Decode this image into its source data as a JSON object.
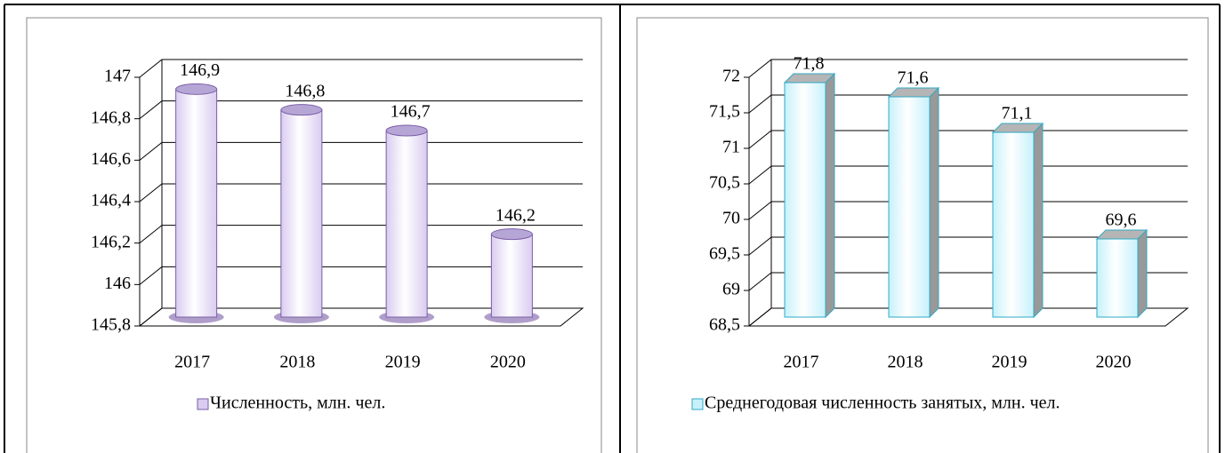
{
  "chart_data": [
    {
      "type": "bar",
      "shape": "cylinder",
      "categories": [
        "2017",
        "2018",
        "2019",
        "2020"
      ],
      "series": [
        {
          "name": "Численность, млн. чел.",
          "color": "#d9ccf0",
          "edge": "#7b5ea7",
          "values": [
            146.9,
            146.8,
            146.7,
            146.2
          ],
          "value_labels": [
            "146,9",
            "146,8",
            "146,7",
            "146,2"
          ]
        }
      ],
      "ylim": [
        145.8,
        147
      ],
      "yticks": [
        {
          "value": 145.8,
          "label": "145,8"
        },
        146,
        {
          "value": 146.2,
          "label": "146,2"
        },
        {
          "value": 146.4,
          "label": "146,4"
        },
        {
          "value": 146.6,
          "label": "146,6"
        },
        {
          "value": 146.8,
          "label": "146,8"
        },
        147
      ],
      "grid": true,
      "legend": "bottom"
    },
    {
      "type": "bar",
      "shape": "box",
      "categories": [
        "2017",
        "2018",
        "2019",
        "2020"
      ],
      "series": [
        {
          "name": "Среднегодовая численность занятых, млн. чел.",
          "color": "#c6f1fb",
          "edge": "#31a9c4",
          "values": [
            71.8,
            71.6,
            71.1,
            69.6
          ],
          "value_labels": [
            "71,8",
            "71,6",
            "71,1",
            "69,6"
          ]
        }
      ],
      "ylim": [
        68.5,
        72
      ],
      "yticks": [
        {
          "value": 68.5,
          "label": "68,5"
        },
        69,
        {
          "value": 69.5,
          "label": "69,5"
        },
        70,
        {
          "value": 70.5,
          "label": "70,5"
        },
        71,
        {
          "value": 71.5,
          "label": "71,5"
        },
        72
      ],
      "grid": true,
      "legend": "bottom"
    }
  ]
}
